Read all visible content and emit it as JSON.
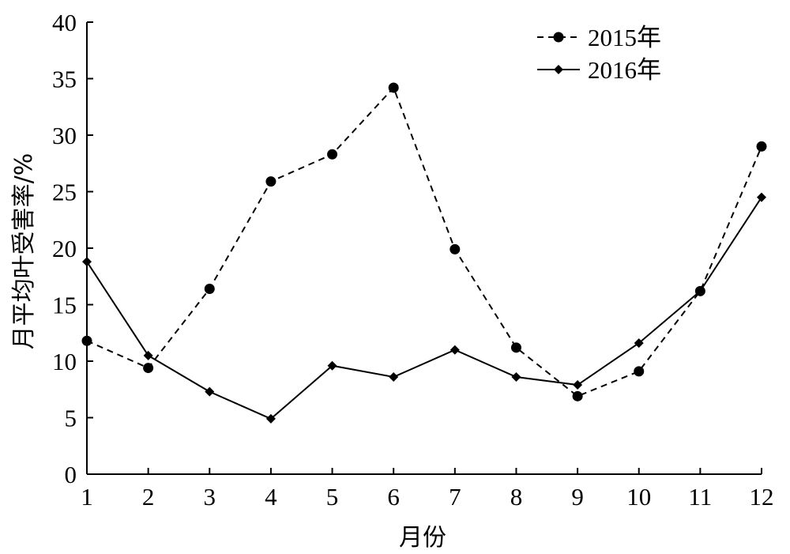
{
  "chart_data": {
    "type": "line",
    "xlabel": "月份",
    "ylabel": "月平均叶受害率/%",
    "x": [
      1,
      2,
      3,
      4,
      5,
      6,
      7,
      8,
      9,
      10,
      11,
      12
    ],
    "xlim": [
      1,
      12
    ],
    "ylim": [
      0,
      40
    ],
    "yticks": [
      0,
      5,
      10,
      15,
      20,
      25,
      30,
      35,
      40
    ],
    "grid": false,
    "legend_position": "top-right",
    "series": [
      {
        "name": "2015年",
        "line_style": "dashed",
        "marker": "circle",
        "values": [
          11.8,
          9.4,
          16.4,
          25.9,
          28.3,
          34.2,
          19.9,
          11.2,
          6.9,
          9.1,
          16.2,
          29.0
        ]
      },
      {
        "name": "2016年",
        "line_style": "solid",
        "marker": "diamond",
        "values": [
          18.8,
          10.5,
          7.3,
          4.9,
          9.6,
          8.6,
          11.0,
          8.6,
          7.9,
          11.6,
          16.2,
          24.5
        ]
      }
    ],
    "colors": {
      "line": "#000000",
      "background": "#ffffff"
    }
  }
}
